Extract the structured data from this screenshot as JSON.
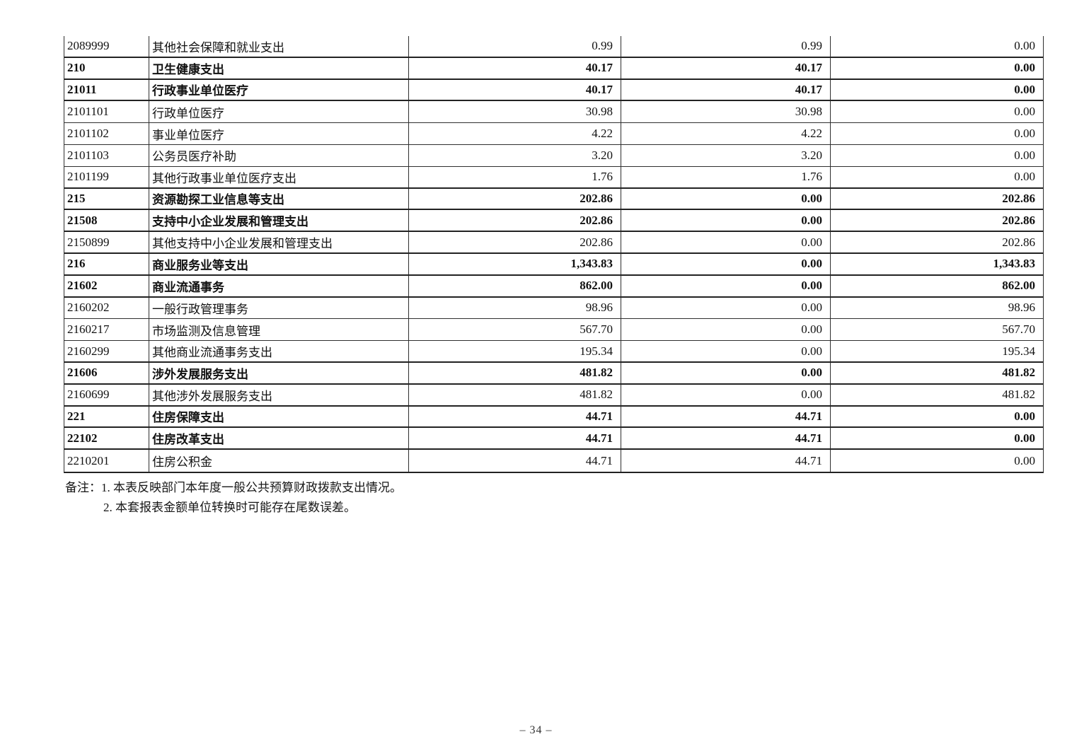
{
  "table": {
    "rows": [
      {
        "code": "2089999",
        "name": "其他社会保障和就业支出",
        "values": [
          "0.99",
          "0.99",
          "0.00"
        ],
        "bold": false
      },
      {
        "code": "210",
        "name": "卫生健康支出",
        "values": [
          "40.17",
          "40.17",
          "0.00"
        ],
        "bold": true
      },
      {
        "code": "21011",
        "name": "行政事业单位医疗",
        "values": [
          "40.17",
          "40.17",
          "0.00"
        ],
        "bold": true
      },
      {
        "code": "2101101",
        "name": "行政单位医疗",
        "values": [
          "30.98",
          "30.98",
          "0.00"
        ],
        "bold": false
      },
      {
        "code": "2101102",
        "name": "事业单位医疗",
        "values": [
          "4.22",
          "4.22",
          "0.00"
        ],
        "bold": false
      },
      {
        "code": "2101103",
        "name": "公务员医疗补助",
        "values": [
          "3.20",
          "3.20",
          "0.00"
        ],
        "bold": false
      },
      {
        "code": "2101199",
        "name": "其他行政事业单位医疗支出",
        "values": [
          "1.76",
          "1.76",
          "0.00"
        ],
        "bold": false
      },
      {
        "code": "215",
        "name": "资源勘探工业信息等支出",
        "values": [
          "202.86",
          "0.00",
          "202.86"
        ],
        "bold": true
      },
      {
        "code": "21508",
        "name": "支持中小企业发展和管理支出",
        "values": [
          "202.86",
          "0.00",
          "202.86"
        ],
        "bold": true
      },
      {
        "code": "2150899",
        "name": "其他支持中小企业发展和管理支出",
        "values": [
          "202.86",
          "0.00",
          "202.86"
        ],
        "bold": false
      },
      {
        "code": "216",
        "name": "商业服务业等支出",
        "values": [
          "1,343.83",
          "0.00",
          "1,343.83"
        ],
        "bold": true
      },
      {
        "code": "21602",
        "name": "商业流通事务",
        "values": [
          "862.00",
          "0.00",
          "862.00"
        ],
        "bold": true
      },
      {
        "code": "2160202",
        "name": "一般行政管理事务",
        "values": [
          "98.96",
          "0.00",
          "98.96"
        ],
        "bold": false
      },
      {
        "code": "2160217",
        "name": "市场监测及信息管理",
        "values": [
          "567.70",
          "0.00",
          "567.70"
        ],
        "bold": false
      },
      {
        "code": "2160299",
        "name": "其他商业流通事务支出",
        "values": [
          "195.34",
          "0.00",
          "195.34"
        ],
        "bold": false
      },
      {
        "code": "21606",
        "name": "涉外发展服务支出",
        "values": [
          "481.82",
          "0.00",
          "481.82"
        ],
        "bold": true
      },
      {
        "code": "2160699",
        "name": "其他涉外发展服务支出",
        "values": [
          "481.82",
          "0.00",
          "481.82"
        ],
        "bold": false
      },
      {
        "code": "221",
        "name": "住房保障支出",
        "values": [
          "44.71",
          "44.71",
          "0.00"
        ],
        "bold": true
      },
      {
        "code": "22102",
        "name": "住房改革支出",
        "values": [
          "44.71",
          "44.71",
          "0.00"
        ],
        "bold": true
      },
      {
        "code": "2210201",
        "name": "住房公积金",
        "values": [
          "44.71",
          "44.71",
          "0.00"
        ],
        "bold": false
      }
    ]
  },
  "notes": {
    "label": "备注：",
    "line1": "1. 本表反映部门本年度一般公共预算财政拨款支出情况。",
    "line2": "2. 本套报表金额单位转换时可能存在尾数误差。"
  },
  "footer": {
    "page_number": "– 34 –"
  }
}
